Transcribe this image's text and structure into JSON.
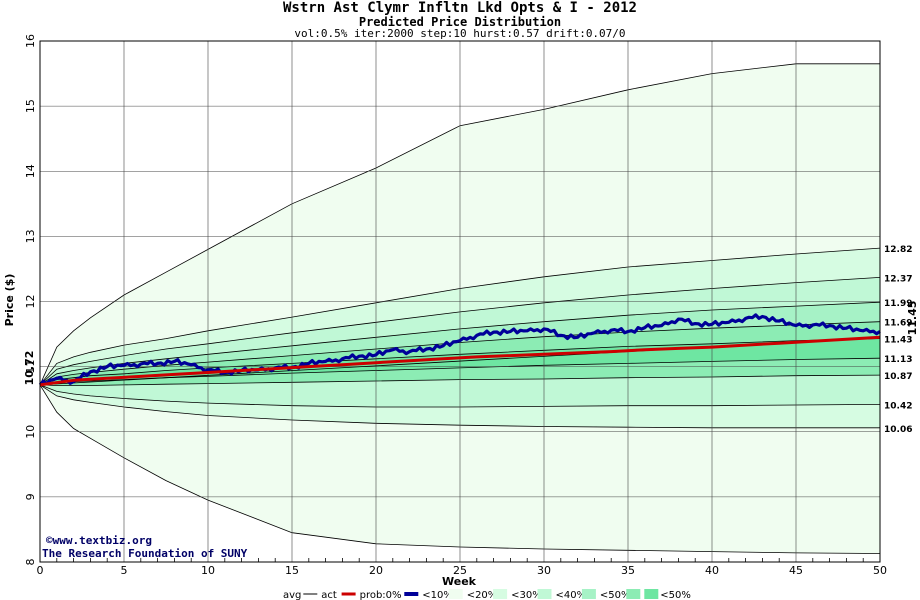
{
  "header": {
    "title": "Wstrn Ast Clymr Infltn Lkd Opts & I - 2012",
    "subtitle": "Predicted Price Distribution",
    "params": "vol:0.5% iter:2000 step:10 hurst:0.57 drift:0.07/0"
  },
  "credits": {
    "site": "www.textbiz.org",
    "org": "The Research Foundation of SUNY"
  },
  "colors": {
    "band_0": "#f0fdf0",
    "band_10": "#d6fce2",
    "band_20": "#c0f8d6",
    "band_30": "#a6f2c6",
    "band_40": "#8cecb4",
    "band_50": "#6ee6a2",
    "act": "#cc0000",
    "prob": "#000099",
    "start_label": "#006600"
  },
  "chart_data": {
    "type": "line",
    "xlabel": "Week",
    "ylabel": "Price ($)",
    "xlim": [
      0,
      50
    ],
    "ylim": [
      8,
      16
    ],
    "xticks": [
      0,
      5,
      10,
      15,
      20,
      25,
      30,
      35,
      40,
      45,
      50
    ],
    "yticks": [
      8,
      9,
      10,
      11,
      12,
      13,
      14,
      15,
      16
    ],
    "grid": true,
    "start_price": "10.72",
    "end_price": "11.45",
    "right_labels": [
      "12.82",
      "12.37",
      "11.99",
      "11.69",
      "11.43",
      "11.13",
      "10.87",
      "10.42",
      "10.06"
    ],
    "bands_x": [
      0,
      1,
      2,
      3,
      5,
      7.5,
      10,
      15,
      20,
      25,
      30,
      35,
      40,
      45,
      50
    ],
    "band_lines": [
      {
        "name": "upper 0%",
        "values": [
          10.72,
          11.3,
          11.55,
          11.75,
          12.1,
          12.45,
          12.8,
          13.5,
          14.05,
          14.7,
          14.95,
          15.25,
          15.5,
          15.65,
          15.65
        ]
      },
      {
        "name": "upper 10%",
        "values": [
          10.72,
          11.05,
          11.15,
          11.22,
          11.33,
          11.43,
          11.55,
          11.76,
          11.98,
          12.2,
          12.38,
          12.53,
          12.63,
          12.73,
          12.82
        ]
      },
      {
        "name": "upper 20%",
        "values": [
          10.72,
          10.96,
          11.03,
          11.08,
          11.17,
          11.27,
          11.35,
          11.52,
          11.68,
          11.84,
          11.98,
          12.1,
          12.2,
          12.29,
          12.37
        ]
      },
      {
        "name": "upper 30%",
        "values": [
          10.72,
          10.89,
          10.94,
          10.98,
          11.05,
          11.12,
          11.19,
          11.32,
          11.45,
          11.58,
          11.69,
          11.79,
          11.87,
          11.93,
          11.99
        ]
      },
      {
        "name": "upper 40%",
        "values": [
          10.72,
          10.84,
          10.88,
          10.91,
          10.96,
          11.02,
          11.07,
          11.17,
          11.27,
          11.37,
          11.46,
          11.53,
          11.59,
          11.64,
          11.69
        ]
      },
      {
        "name": "upper 50%",
        "values": [
          10.72,
          10.8,
          10.83,
          10.86,
          10.89,
          10.94,
          10.98,
          11.05,
          11.12,
          11.19,
          11.25,
          11.31,
          11.35,
          11.4,
          11.43
        ]
      },
      {
        "name": "lower 50%",
        "values": [
          10.72,
          10.76,
          10.77,
          10.78,
          10.8,
          10.83,
          10.85,
          10.9,
          10.94,
          10.98,
          11.02,
          11.05,
          11.08,
          11.11,
          11.13
        ]
      },
      {
        "name": "lower 40%",
        "values": [
          10.72,
          10.71,
          10.71,
          10.71,
          10.72,
          10.73,
          10.74,
          10.76,
          10.78,
          10.8,
          10.81,
          10.83,
          10.84,
          10.86,
          10.87
        ]
      },
      {
        "name": "lower 30%",
        "values": [
          10.72,
          10.62,
          10.58,
          10.55,
          10.51,
          10.47,
          10.44,
          10.4,
          10.38,
          10.38,
          10.39,
          10.4,
          10.4,
          10.41,
          10.42
        ]
      },
      {
        "name": "lower 20%",
        "values": [
          10.72,
          10.55,
          10.49,
          10.45,
          10.38,
          10.31,
          10.25,
          10.18,
          10.13,
          10.1,
          10.08,
          10.07,
          10.06,
          10.06,
          10.06
        ]
      },
      {
        "name": "lower 0%",
        "values": [
          10.72,
          10.3,
          10.05,
          9.9,
          9.6,
          9.25,
          8.95,
          8.45,
          8.28,
          8.23,
          8.2,
          8.18,
          8.16,
          8.14,
          8.13
        ]
      }
    ],
    "series": [
      {
        "name": "avg",
        "x": [
          0,
          50
        ],
        "values": [
          10.72,
          11.45
        ]
      },
      {
        "name": "act",
        "x": [
          0,
          2,
          4,
          6,
          8,
          10,
          12,
          14,
          16,
          18,
          20,
          22,
          24,
          26,
          28,
          30,
          32,
          34,
          36,
          38,
          40,
          42,
          44,
          46,
          48,
          50
        ],
        "values": [
          10.72,
          10.79,
          10.82,
          10.85,
          10.88,
          10.91,
          10.94,
          10.97,
          11.0,
          11.03,
          11.06,
          11.09,
          11.12,
          11.15,
          11.17,
          11.19,
          11.21,
          11.23,
          11.26,
          11.28,
          11.3,
          11.33,
          11.36,
          11.39,
          11.42,
          11.45
        ]
      },
      {
        "name": "prob",
        "x": [
          0,
          1,
          2,
          3,
          4,
          5,
          6,
          7,
          8,
          9,
          10,
          11,
          12,
          13,
          14,
          15,
          16,
          17,
          18,
          19,
          20,
          21,
          22,
          23,
          24,
          25,
          26,
          27,
          28,
          29,
          30,
          31,
          32,
          33,
          34,
          35,
          36,
          37,
          38,
          39,
          40,
          41,
          42,
          43,
          44,
          45,
          46,
          47,
          48,
          49,
          50
        ],
        "values": [
          10.72,
          10.82,
          10.77,
          10.92,
          11.0,
          11.02,
          11.04,
          11.05,
          11.08,
          11.03,
          10.95,
          10.91,
          10.94,
          10.95,
          10.98,
          10.99,
          11.05,
          11.08,
          11.12,
          11.16,
          11.18,
          11.26,
          11.23,
          11.27,
          11.32,
          11.4,
          11.48,
          11.53,
          11.54,
          11.55,
          11.58,
          11.48,
          11.45,
          11.52,
          11.56,
          11.54,
          11.6,
          11.63,
          11.73,
          11.66,
          11.65,
          11.68,
          11.74,
          11.77,
          11.7,
          11.63,
          11.64,
          11.63,
          11.59,
          11.55,
          11.54
        ]
      }
    ],
    "legend": [
      "avg",
      "act",
      "prob:0%",
      "<10%",
      "<20%",
      "<30%",
      "<40%",
      "<50%"
    ]
  }
}
